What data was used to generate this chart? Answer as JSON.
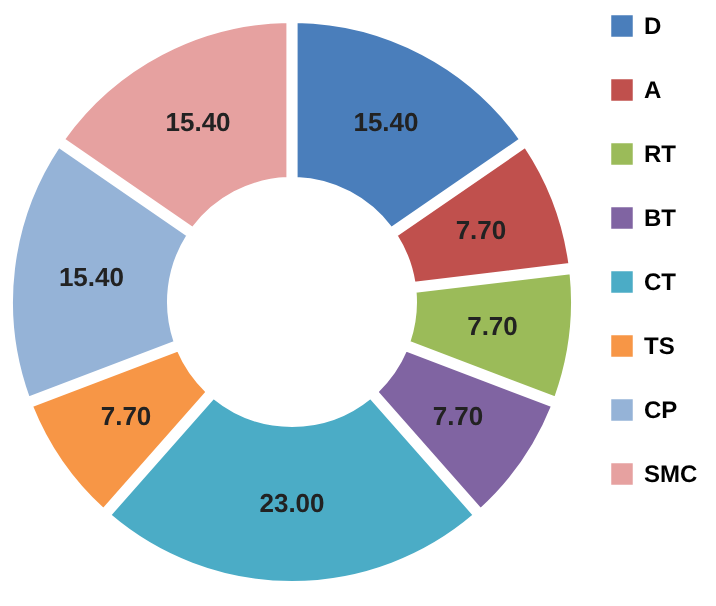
{
  "chart_data": {
    "type": "donut",
    "categories": [
      "D",
      "A",
      "RT",
      "BT",
      "CT",
      "TS",
      "CP",
      "SMC"
    ],
    "values": [
      15.4,
      7.7,
      7.7,
      7.7,
      23.0,
      7.7,
      15.4,
      15.4
    ],
    "value_labels": [
      "15.40",
      "7.70",
      "7.70",
      "7.70",
      "23.00",
      "7.70",
      "15.40",
      "15.40"
    ],
    "colors": [
      "#4a7ebb",
      "#c0504d",
      "#9bbb59",
      "#8064a2",
      "#4bacc6",
      "#f79646",
      "#95b3d7",
      "#e6a1a0"
    ],
    "legend": "right"
  }
}
